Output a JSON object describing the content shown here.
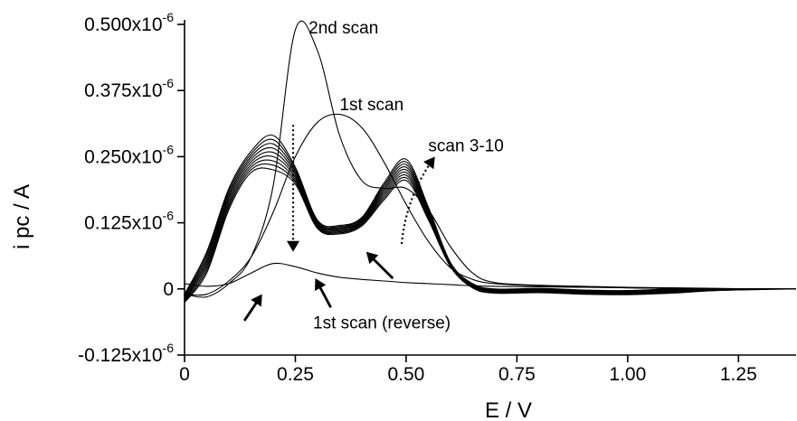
{
  "chart_data": {
    "type": "line",
    "xlabel": "E / V",
    "ylabel": "i pc / A",
    "xlim": [
      0,
      1.38
    ],
    "ylim": [
      -1.25e-07,
      5e-07
    ],
    "x_ticks": [
      0,
      0.25,
      0.5,
      0.75,
      1.0,
      1.25
    ],
    "x_tick_labels": [
      "0",
      "0.25",
      "0.50",
      "0.75",
      "1.00",
      "1.25"
    ],
    "y_ticks": [
      -1.25e-07,
      0,
      1.25e-07,
      2.5e-07,
      3.75e-07,
      5e-07
    ],
    "y_tick_labels": [
      {
        "base": "-0.125x10",
        "exp": "-6"
      },
      {
        "base": "0",
        "exp": ""
      },
      {
        "base": "0.125x10",
        "exp": "-6"
      },
      {
        "base": "0.250x10",
        "exp": "-6"
      },
      {
        "base": "0.375x10",
        "exp": "-6"
      },
      {
        "base": "0.500x10",
        "exp": "-6"
      }
    ],
    "grid": false,
    "legend": "none",
    "color": "#000000",
    "annotations": [
      {
        "text": "2nd scan",
        "x": 0.28,
        "y": 4.83e-07
      },
      {
        "text": "1st scan",
        "x": 0.35,
        "y": 3.38e-07
      },
      {
        "text": "scan 3-10",
        "x": 0.55,
        "y": 2.6e-07
      },
      {
        "text": "1st scan (reverse)",
        "x": 0.29,
        "y": -7.5e-08
      }
    ],
    "arrows": [
      {
        "style": "dotted",
        "from": [
          0.245,
          3.1e-07
        ],
        "to": [
          0.245,
          7e-08
        ]
      },
      {
        "style": "dotted-curved",
        "from": [
          0.49,
          8.5e-08
        ],
        "to": [
          0.565,
          2.5e-07
        ]
      },
      {
        "style": "solid",
        "from": [
          0.47,
          2e-08
        ],
        "to": [
          0.41,
          7e-08
        ]
      },
      {
        "style": "solid",
        "from": [
          0.135,
          -6e-08
        ],
        "to": [
          0.175,
          -1e-08
        ]
      },
      {
        "style": "solid",
        "from": [
          0.33,
          -3.5e-08
        ],
        "to": [
          0.295,
          2e-08
        ]
      }
    ],
    "series": [
      {
        "x": [
          0,
          0.05,
          0.1,
          0.15,
          0.2,
          0.25,
          0.3,
          0.35,
          0.4,
          0.45,
          0.5,
          0.55,
          0.6,
          0.65,
          0.7,
          0.8,
          0.9,
          1.0,
          1.1,
          1.2,
          1.3,
          1.38
        ],
        "y": [
          -1e-08,
          -1.5e-08,
          1e-08,
          6e-08,
          1.95e-07,
          4.9e-07,
          4.5e-07,
          2.9e-07,
          2.05e-07,
          1.9e-07,
          1.9e-07,
          1.5e-07,
          8e-08,
          3e-08,
          1.2e-08,
          7e-09,
          5e-09,
          3e-09,
          2e-09,
          1e-09,
          0,
          0
        ]
      },
      {
        "x": [
          0,
          0.05,
          0.1,
          0.15,
          0.2,
          0.25,
          0.3,
          0.35,
          0.4,
          0.45,
          0.5,
          0.55,
          0.6,
          0.65,
          0.7,
          0.8,
          0.9,
          1.0,
          1.1,
          1.2,
          1.3,
          1.38
        ],
        "y": [
          -1e-08,
          -1e-08,
          1.5e-08,
          6e-08,
          1.45e-07,
          2.5e-07,
          3.15e-07,
          3.3e-07,
          3.05e-07,
          2.4e-07,
          1.6e-07,
          9e-08,
          4e-08,
          1.8e-08,
          1e-08,
          6e-09,
          4e-09,
          2e-09,
          1e-09,
          0,
          0,
          0
        ]
      },
      {
        "x": [
          0,
          0.05,
          0.1,
          0.15,
          0.2,
          0.25,
          0.3,
          0.35,
          0.4,
          0.45,
          0.5,
          0.55,
          0.6,
          0.65,
          0.7,
          0.8,
          0.9,
          1.0,
          1.1,
          1.2,
          1.3,
          1.38
        ],
        "y": [
          -1e-08,
          7e-08,
          1.9e-07,
          2.6e-07,
          2.9e-07,
          2.3e-07,
          1.3e-07,
          1.2e-07,
          1.35e-07,
          2e-07,
          2.45e-07,
          1.55e-07,
          5e-08,
          1e-08,
          0,
          1e-09,
          -2e-09,
          -3e-09,
          0,
          0,
          0,
          0
        ]
      },
      {
        "x": [
          0,
          0.05,
          0.1,
          0.15,
          0.2,
          0.25,
          0.3,
          0.35,
          0.4,
          0.45,
          0.5,
          0.55,
          0.6,
          0.65,
          0.7,
          0.8,
          0.9,
          1.0,
          1.1,
          1.2,
          1.3,
          1.38
        ],
        "y": [
          -1.2e-08,
          6.5e-08,
          1.85e-07,
          2.55e-07,
          2.82e-07,
          2.26e-07,
          1.28e-07,
          1.18e-07,
          1.33e-07,
          1.96e-07,
          2.4e-07,
          1.52e-07,
          4.9e-08,
          9e-09,
          -1e-09,
          0,
          -3e-09,
          -4e-09,
          -1e-09,
          0,
          0,
          0
        ]
      },
      {
        "x": [
          0,
          0.05,
          0.1,
          0.15,
          0.2,
          0.25,
          0.3,
          0.35,
          0.4,
          0.45,
          0.5,
          0.55,
          0.6,
          0.65,
          0.7,
          0.8,
          0.9,
          1.0,
          1.1,
          1.2,
          1.3,
          1.38
        ],
        "y": [
          -1.4e-08,
          6e-08,
          1.8e-07,
          2.5e-07,
          2.74e-07,
          2.22e-07,
          1.26e-07,
          1.16e-07,
          1.31e-07,
          1.92e-07,
          2.35e-07,
          1.49e-07,
          4.8e-08,
          8e-09,
          -2e-09,
          -1e-09,
          -4e-09,
          -5e-09,
          -2e-09,
          0,
          0,
          0
        ]
      },
      {
        "x": [
          0,
          0.05,
          0.1,
          0.15,
          0.2,
          0.25,
          0.3,
          0.35,
          0.4,
          0.45,
          0.5,
          0.55,
          0.6,
          0.65,
          0.7,
          0.8,
          0.9,
          1.0,
          1.1,
          1.2,
          1.3,
          1.38
        ],
        "y": [
          -1.6e-08,
          5.5e-08,
          1.75e-07,
          2.45e-07,
          2.66e-07,
          2.18e-07,
          1.24e-07,
          1.14e-07,
          1.29e-07,
          1.88e-07,
          2.3e-07,
          1.46e-07,
          4.7e-08,
          7e-09,
          -3e-09,
          -2e-09,
          -5e-09,
          -6e-09,
          -3e-09,
          -1e-09,
          0,
          0
        ]
      },
      {
        "x": [
          0,
          0.05,
          0.1,
          0.15,
          0.2,
          0.25,
          0.3,
          0.35,
          0.4,
          0.45,
          0.5,
          0.55,
          0.6,
          0.65,
          0.7,
          0.8,
          0.9,
          1.0,
          1.1,
          1.2,
          1.3,
          1.38
        ],
        "y": [
          -1.8e-08,
          5e-08,
          1.7e-07,
          2.4e-07,
          2.58e-07,
          2.14e-07,
          1.22e-07,
          1.12e-07,
          1.27e-07,
          1.84e-07,
          2.25e-07,
          1.43e-07,
          4.6e-08,
          6e-09,
          -4e-09,
          -3e-09,
          -6e-09,
          -7e-09,
          -4e-09,
          -1e-09,
          0,
          0
        ]
      },
      {
        "x": [
          0,
          0.05,
          0.1,
          0.15,
          0.2,
          0.25,
          0.3,
          0.35,
          0.4,
          0.45,
          0.5,
          0.55,
          0.6,
          0.65,
          0.7,
          0.8,
          0.9,
          1.0,
          1.1,
          1.2,
          1.3,
          1.38
        ],
        "y": [
          -2e-08,
          4.5e-08,
          1.65e-07,
          2.35e-07,
          2.5e-07,
          2.1e-07,
          1.2e-07,
          1.1e-07,
          1.25e-07,
          1.8e-07,
          2.2e-07,
          1.4e-07,
          4.5e-08,
          5e-09,
          -5e-09,
          -4e-09,
          -7e-09,
          -8e-09,
          -5e-09,
          -2e-09,
          0,
          0
        ]
      },
      {
        "x": [
          0,
          0.05,
          0.1,
          0.15,
          0.2,
          0.25,
          0.3,
          0.35,
          0.4,
          0.45,
          0.5,
          0.55,
          0.6,
          0.65,
          0.7,
          0.8,
          0.9,
          1.0,
          1.1,
          1.2,
          1.3,
          1.38
        ],
        "y": [
          -2.2e-08,
          4e-08,
          1.6e-07,
          2.3e-07,
          2.42e-07,
          2.06e-07,
          1.18e-07,
          1.08e-07,
          1.23e-07,
          1.76e-07,
          2.15e-07,
          1.37e-07,
          4.4e-08,
          4e-09,
          -6e-09,
          -5e-09,
          -8e-09,
          -9e-09,
          -6e-09,
          -2e-09,
          0,
          0
        ]
      },
      {
        "x": [
          0,
          0.05,
          0.1,
          0.15,
          0.2,
          0.25,
          0.3,
          0.35,
          0.4,
          0.45,
          0.5,
          0.55,
          0.6,
          0.65,
          0.7,
          0.8,
          0.9,
          1.0,
          1.1,
          1.2,
          1.3,
          1.38
        ],
        "y": [
          -2.4e-08,
          3.5e-08,
          1.55e-07,
          2.25e-07,
          2.34e-07,
          2.02e-07,
          1.16e-07,
          1.06e-07,
          1.21e-07,
          1.72e-07,
          2.1e-07,
          1.34e-07,
          4.3e-08,
          3e-09,
          -7e-09,
          -6e-09,
          -9e-09,
          -1e-08,
          -7e-09,
          -3e-09,
          -1e-09,
          0
        ]
      },
      {
        "x": [
          0,
          0.05,
          0.1,
          0.15,
          0.2,
          0.25,
          0.3,
          0.35,
          0.4,
          0.45,
          0.5,
          0.55,
          0.6,
          0.65,
          0.7,
          0.8,
          0.9,
          1.0,
          1.1,
          1.2,
          1.3,
          1.38
        ],
        "y": [
          -2.6e-08,
          3e-08,
          1.5e-07,
          2.2e-07,
          2.25e-07,
          1.98e-07,
          1.14e-07,
          1.04e-07,
          1.19e-07,
          1.68e-07,
          2.05e-07,
          1.31e-07,
          4.2e-08,
          2e-09,
          -8e-09,
          -7e-09,
          -1e-08,
          -1.1e-08,
          -8e-09,
          -3e-09,
          -1e-09,
          0
        ]
      },
      {
        "x": [
          0,
          0.05,
          0.1,
          0.15,
          0.2,
          0.25,
          0.3,
          0.35,
          0.4,
          0.45,
          0.5,
          0.55,
          0.6,
          0.65,
          0.7,
          0.8,
          0.9,
          1.0,
          1.1,
          1.2,
          1.3,
          1.38
        ],
        "y": [
          1e-08,
          5e-09,
          1e-08,
          3e-08,
          4.8e-08,
          4.2e-08,
          3e-08,
          2.2e-08,
          1.8e-08,
          1.5e-08,
          1.2e-08,
          1e-08,
          8e-09,
          6e-09,
          5e-09,
          4e-09,
          3e-09,
          2e-09,
          1e-09,
          0,
          0,
          0
        ]
      }
    ]
  }
}
